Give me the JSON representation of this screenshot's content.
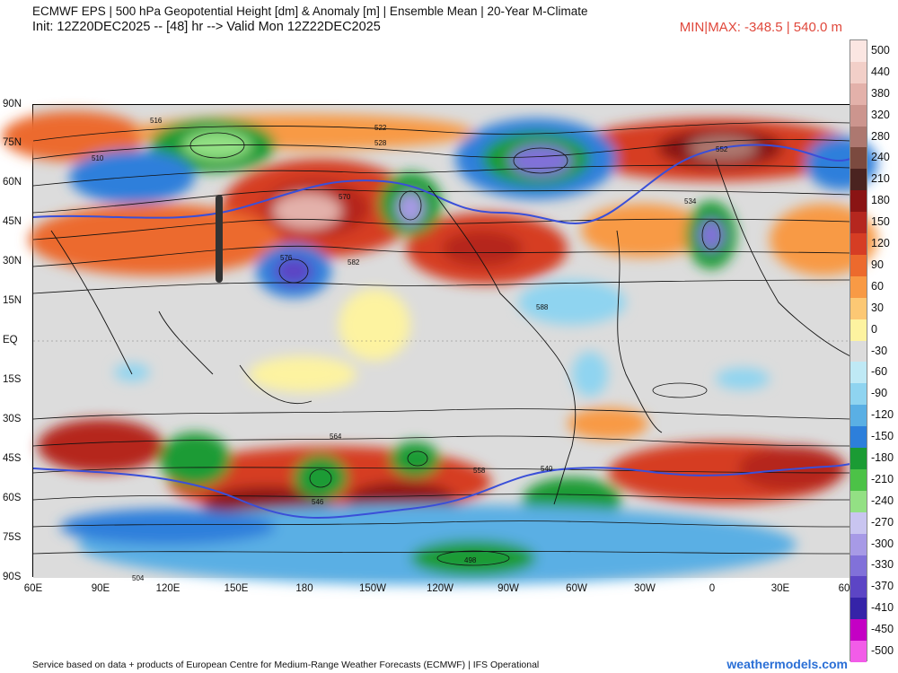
{
  "header": {
    "title": "ECMWF EPS | 500 hPa Geopotential Height [dm] & Anomaly [m] | Ensemble Mean | 20-Year M-Climate",
    "init": "Init: 12Z20DEC2025 -- [48] hr --> Valid Mon 12Z22DEC2025",
    "minmax": "MIN|MAX: -348.5 | 540.0 m"
  },
  "map": {
    "lat_labels": [
      "90N",
      "75N",
      "60N",
      "45N",
      "30N",
      "15N",
      "EQ",
      "15S",
      "30S",
      "45S",
      "60S",
      "75S",
      "90S"
    ],
    "lon_labels": [
      "60E",
      "90E",
      "120E",
      "150E",
      "180",
      "150W",
      "120W",
      "90W",
      "60W",
      "30W",
      "0",
      "30E",
      "60"
    ],
    "contour_labels": [
      "516",
      "510",
      "504",
      "498",
      "522",
      "528",
      "534",
      "540",
      "546",
      "552",
      "558",
      "564",
      "570",
      "576",
      "582",
      "588"
    ]
  },
  "colorbar": {
    "labels": [
      "500",
      "440",
      "380",
      "320",
      "280",
      "240",
      "210",
      "180",
      "150",
      "120",
      "90",
      "60",
      "30",
      "0",
      "-30",
      "-60",
      "-90",
      "-120",
      "-150",
      "-180",
      "-210",
      "-240",
      "-270",
      "-300",
      "-330",
      "-370",
      "-410",
      "-450",
      "-500"
    ],
    "colors": [
      "#fbe6e2",
      "#f2cfc8",
      "#e3b1aa",
      "#cc958e",
      "#ad7870",
      "#7b4a3f",
      "#4a2320",
      "#8a1414",
      "#b5271f",
      "#d63d24",
      "#ec6a2d",
      "#f89a45",
      "#fcc874",
      "#fdf3a0",
      "#dcdcdc",
      "#bfe9f5",
      "#8fd4f0",
      "#5aafe4",
      "#2d7fdb",
      "#1b9b34",
      "#4cc247",
      "#93e084",
      "#c9c5f0",
      "#a79ae6",
      "#8171d9",
      "#5c45c5",
      "#3523a8",
      "#c400c4",
      "#f25ce8"
    ]
  },
  "footer": {
    "credit": "Service based on data + products of European Centre for Medium-Range Weather Forecasts (ECMWF) | IFS Operational",
    "brand": "weathermodels.com"
  }
}
